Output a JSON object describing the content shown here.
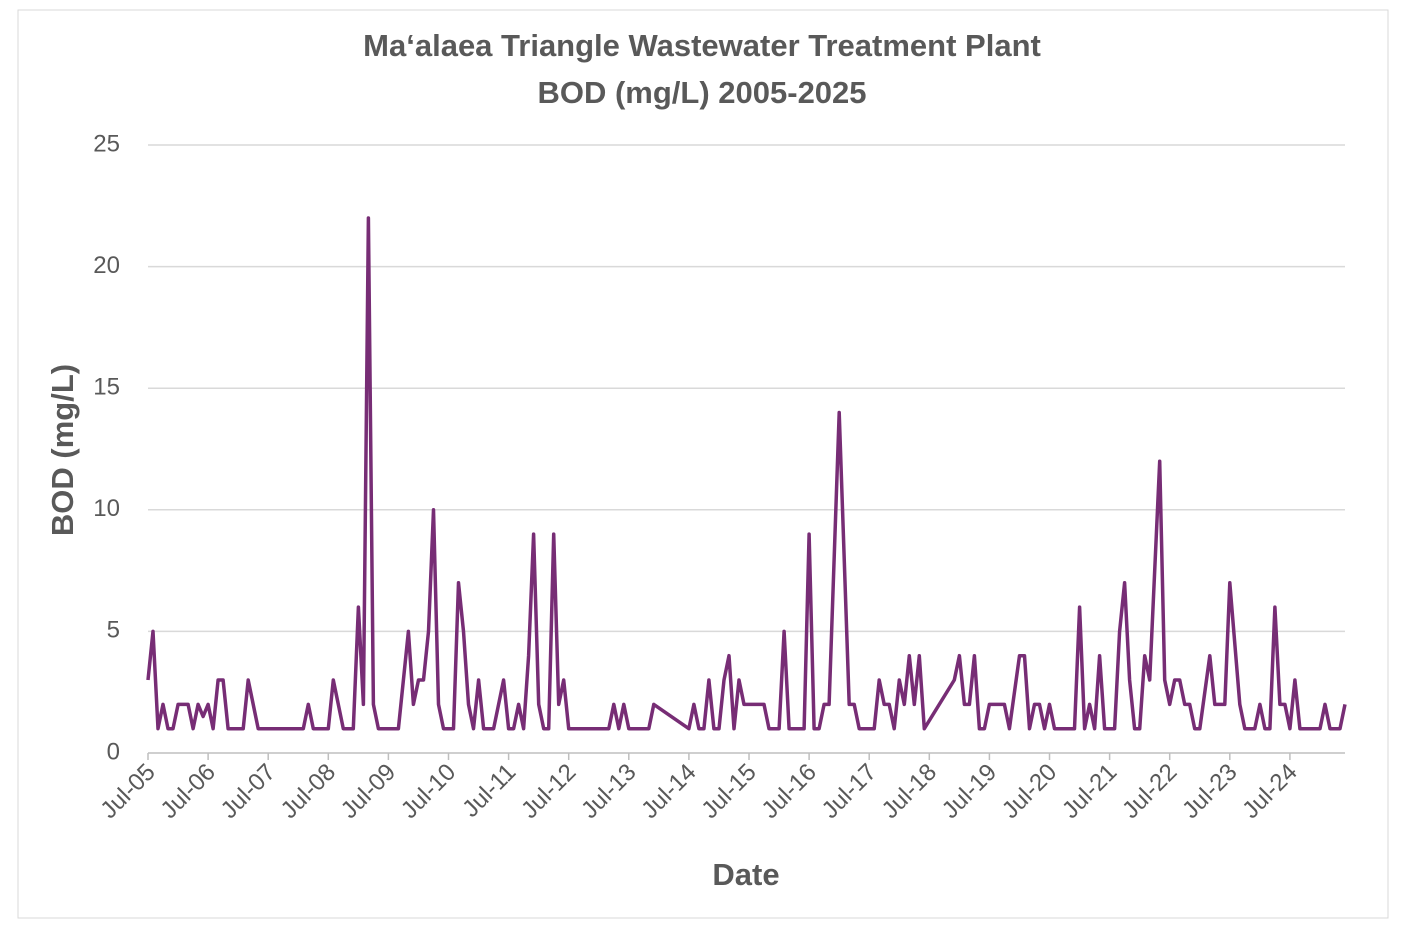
{
  "chart_data": {
    "type": "line",
    "title": [
      "Ma‘alaea Triangle Wastewater Treatment Plant",
      "BOD (mg/L) 2005-2025"
    ],
    "x_label": "Date",
    "y_label": "BOD (mg/L)",
    "color": "#772d75",
    "grid": true,
    "xlim": [
      "2005-07",
      "2025-06"
    ],
    "xticks": [
      {
        "value": "2005-07",
        "label": "Jul-05"
      },
      {
        "value": "2006-07",
        "label": "Jul-06"
      },
      {
        "value": "2007-07",
        "label": "Jul-07"
      },
      {
        "value": "2008-07",
        "label": "Jul-08"
      },
      {
        "value": "2009-07",
        "label": "Jul-09"
      },
      {
        "value": "2010-07",
        "label": "Jul-10"
      },
      {
        "value": "2011-07",
        "label": "Jul-11"
      },
      {
        "value": "2012-07",
        "label": "Jul-12"
      },
      {
        "value": "2013-07",
        "label": "Jul-13"
      },
      {
        "value": "2014-07",
        "label": "Jul-14"
      },
      {
        "value": "2015-07",
        "label": "Jul-15"
      },
      {
        "value": "2016-07",
        "label": "Jul-16"
      },
      {
        "value": "2017-07",
        "label": "Jul-17"
      },
      {
        "value": "2018-07",
        "label": "Jul-18"
      },
      {
        "value": "2019-07",
        "label": "Jul-19"
      },
      {
        "value": "2020-07",
        "label": "Jul-20"
      },
      {
        "value": "2021-07",
        "label": "Jul-21"
      },
      {
        "value": "2022-07",
        "label": "Jul-22"
      },
      {
        "value": "2023-07",
        "label": "Jul-23"
      },
      {
        "value": "2024-07",
        "label": "Jul-24"
      }
    ],
    "ylim": [
      0,
      25
    ],
    "yticks": [
      0,
      5,
      10,
      15,
      20,
      25
    ],
    "x": [
      "2005-07",
      "2005-08",
      "2005-09",
      "2005-10",
      "2005-11",
      "2005-12",
      "2006-01",
      "2006-03",
      "2006-04",
      "2006-05",
      "2006-06",
      "2006-07",
      "2006-08",
      "2006-09",
      "2006-10",
      "2006-11",
      "2007-02",
      "2007-03",
      "2007-05",
      "2008-02",
      "2008-03",
      "2008-04",
      "2008-07",
      "2008-08",
      "2008-10",
      "2008-12",
      "2009-01",
      "2009-02",
      "2009-03",
      "2009-04",
      "2009-05",
      "2009-09",
      "2009-11",
      "2009-12",
      "2010-01",
      "2010-02",
      "2010-03",
      "2010-04",
      "2010-05",
      "2010-06",
      "2010-08",
      "2010-09",
      "2010-10",
      "2010-11",
      "2010-12",
      "2011-01",
      "2011-02",
      "2011-04",
      "2011-06",
      "2011-07",
      "2011-08",
      "2011-09",
      "2011-10",
      "2011-11",
      "2011-12",
      "2012-01",
      "2012-02",
      "2012-03",
      "2012-04",
      "2012-05",
      "2012-06",
      "2012-07",
      "2013-03",
      "2013-04",
      "2013-05",
      "2013-06",
      "2013-07",
      "2013-11",
      "2013-12",
      "2014-07",
      "2014-08",
      "2014-09",
      "2014-10",
      "2014-11",
      "2014-12",
      "2015-01",
      "2015-02",
      "2015-03",
      "2015-04",
      "2015-05",
      "2015-06",
      "2015-10",
      "2015-11",
      "2016-01",
      "2016-02",
      "2016-03",
      "2016-06",
      "2016-07",
      "2016-08",
      "2016-09",
      "2016-10",
      "2016-11",
      "2017-01",
      "2017-03",
      "2017-04",
      "2017-05",
      "2017-08",
      "2017-09",
      "2017-10",
      "2017-11",
      "2017-12",
      "2018-01",
      "2018-02",
      "2018-03",
      "2018-04",
      "2018-05",
      "2018-06",
      "2018-12",
      "2019-01",
      "2019-02",
      "2019-03",
      "2019-04",
      "2019-05",
      "2019-06",
      "2019-07",
      "2019-10",
      "2019-11",
      "2020-01",
      "2020-02",
      "2020-03",
      "2020-04",
      "2020-05",
      "2020-06",
      "2020-07",
      "2020-08",
      "2020-12",
      "2021-01",
      "2021-02",
      "2021-03",
      "2021-04",
      "2021-05",
      "2021-06",
      "2021-08",
      "2021-09",
      "2021-10",
      "2021-11",
      "2021-12",
      "2022-01",
      "2022-02",
      "2022-03",
      "2022-05",
      "2022-06",
      "2022-07",
      "2022-08",
      "2022-09",
      "2022-10",
      "2022-11",
      "2022-12",
      "2023-01",
      "2023-03",
      "2023-04",
      "2023-06",
      "2023-07",
      "2023-09",
      "2023-10",
      "2023-12",
      "2024-01",
      "2024-02",
      "2024-03",
      "2024-04",
      "2024-05",
      "2024-06",
      "2024-07",
      "2024-08",
      "2024-09",
      "2025-01",
      "2025-02",
      "2025-03",
      "2025-05",
      "2025-06"
    ],
    "values": [
      3,
      5,
      1,
      2,
      1,
      1,
      2,
      2,
      1,
      2,
      1.5,
      2,
      1,
      3,
      3,
      1,
      1,
      3,
      1,
      1,
      2,
      1,
      1,
      3,
      1,
      1,
      6,
      2,
      22,
      2,
      1,
      1,
      5,
      2,
      3,
      3,
      5,
      10,
      2,
      1,
      1,
      7,
      5,
      2,
      1,
      3,
      1,
      1,
      3,
      1,
      1,
      2,
      1,
      4,
      9,
      2,
      1,
      1,
      9,
      2,
      3,
      1,
      1,
      2,
      1,
      2,
      1,
      1,
      2,
      1,
      2,
      1,
      1,
      3,
      1,
      1,
      3,
      4,
      1,
      3,
      2,
      2,
      1,
      1,
      5,
      1,
      1,
      9,
      1,
      1,
      2,
      2,
      14,
      2,
      2,
      1,
      1,
      3,
      2,
      2,
      1,
      3,
      2,
      4,
      2,
      4,
      1,
      3,
      4,
      2,
      2,
      4,
      1,
      1,
      2,
      2,
      1,
      4,
      4,
      1,
      2,
      2,
      1,
      2,
      1,
      1,
      6,
      1,
      2,
      1,
      4,
      1,
      1,
      5,
      7,
      3,
      1,
      1,
      4,
      3,
      12,
      3,
      2,
      3,
      3,
      2,
      2,
      1,
      1,
      4,
      2,
      2,
      7,
      2,
      1,
      1,
      2,
      1,
      1,
      6,
      2,
      2,
      1,
      3,
      1,
      1,
      2,
      1,
      1,
      2
    ]
  }
}
